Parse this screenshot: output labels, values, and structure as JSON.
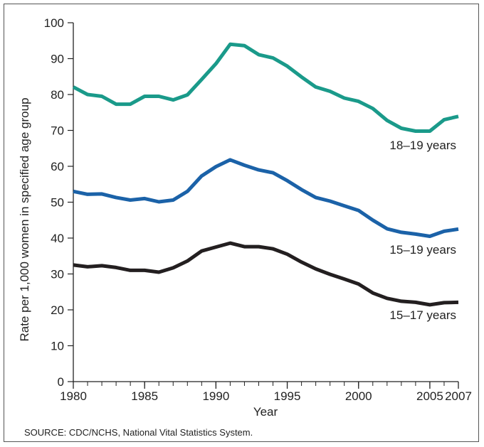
{
  "chart_data": {
    "type": "line",
    "xlabel": "Year",
    "ylabel": "Rate per 1,000 women in specified age group",
    "xlim": [
      1980,
      2007
    ],
    "ylim": [
      0,
      100
    ],
    "x_ticks": [
      1980,
      1985,
      1990,
      1995,
      2000,
      2005,
      2007
    ],
    "y_ticks": [
      0,
      10,
      20,
      30,
      40,
      50,
      60,
      70,
      80,
      90,
      100
    ],
    "x": [
      1980,
      1981,
      1982,
      1983,
      1984,
      1985,
      1986,
      1987,
      1988,
      1989,
      1990,
      1991,
      1992,
      1993,
      1994,
      1995,
      1996,
      1997,
      1998,
      1999,
      2000,
      2001,
      2002,
      2003,
      2004,
      2005,
      2006,
      2007
    ],
    "series": [
      {
        "name": "18–19 years",
        "color": "#1a9a8a",
        "values": [
          82.1,
          80.0,
          79.5,
          77.3,
          77.3,
          79.5,
          79.5,
          78.5,
          79.9,
          84.2,
          88.6,
          94.0,
          93.6,
          91.1,
          90.2,
          87.9,
          84.9,
          82.1,
          80.9,
          79.0,
          78.1,
          76.1,
          72.8,
          70.6,
          69.8,
          69.8,
          73.0,
          73.9
        ]
      },
      {
        "name": "15–19 years",
        "color": "#1b62a8",
        "values": [
          53.0,
          52.2,
          52.3,
          51.3,
          50.6,
          51.0,
          50.1,
          50.6,
          53.0,
          57.3,
          59.9,
          61.8,
          60.3,
          59.0,
          58.2,
          56.0,
          53.5,
          51.3,
          50.3,
          49.0,
          47.7,
          45.0,
          42.6,
          41.6,
          41.1,
          40.5,
          41.9,
          42.5
        ]
      },
      {
        "name": "15–17 years",
        "color": "#231f20",
        "values": [
          32.5,
          32.0,
          32.3,
          31.8,
          31.0,
          31.0,
          30.5,
          31.7,
          33.6,
          36.4,
          37.5,
          38.6,
          37.6,
          37.6,
          37.0,
          35.5,
          33.3,
          31.4,
          29.9,
          28.6,
          27.2,
          24.7,
          23.2,
          22.4,
          22.1,
          21.4,
          22.0,
          22.1
        ]
      }
    ]
  },
  "source": "SOURCE: CDC/NCHS, National Vital Statistics System."
}
